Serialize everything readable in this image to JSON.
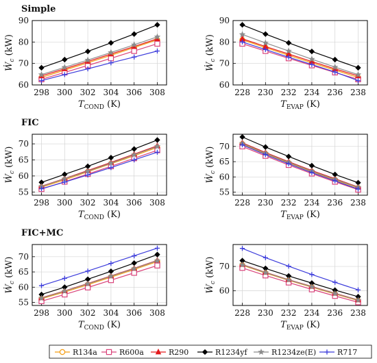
{
  "figure": {
    "legend": {
      "placement": "bottom",
      "entries": [
        {
          "name": "R134a",
          "color": "#f39c12",
          "marker": "circle"
        },
        {
          "name": "R600a",
          "color": "#d9437a",
          "marker": "square"
        },
        {
          "name": "R290",
          "color": "#e31a1c",
          "marker": "triangle"
        },
        {
          "name": "R1234yf",
          "color": "#000000",
          "marker": "diamond"
        },
        {
          "name": "R1234ze(E)",
          "color": "#8c8c8c",
          "marker": "star"
        },
        {
          "name": "R717",
          "color": "#3b3bdb",
          "marker": "plus"
        }
      ]
    }
  },
  "chart_data": [
    {
      "type": "line",
      "panel": "Simple",
      "title": "Simple",
      "xlabel": "T_COND (K)",
      "ylabel": "Ẇc (kW)",
      "xlim": [
        297.2,
        308.8
      ],
      "ylim": [
        60,
        90
      ],
      "xticks": [
        298,
        300,
        302,
        304,
        306,
        308
      ],
      "yticks": [
        60,
        70,
        80,
        90
      ],
      "grid": true,
      "x": [
        298,
        300,
        302,
        304,
        306,
        308
      ],
      "series": [
        {
          "name": "R134a",
          "values": [
            63.5,
            66.9,
            70.3,
            73.8,
            77.4,
            81.0
          ]
        },
        {
          "name": "R600a",
          "values": [
            62.6,
            65.8,
            69.1,
            72.4,
            75.8,
            79.2
          ]
        },
        {
          "name": "R290",
          "values": [
            64.2,
            67.5,
            70.9,
            74.4,
            77.9,
            81.5
          ]
        },
        {
          "name": "R1234yf",
          "values": [
            68.0,
            71.8,
            75.6,
            79.6,
            83.7,
            88.0
          ]
        },
        {
          "name": "R1234ze(E)",
          "values": [
            64.8,
            68.2,
            71.6,
            75.1,
            78.7,
            82.4
          ]
        },
        {
          "name": "R717",
          "values": [
            62.0,
            64.8,
            67.5,
            70.3,
            73.0,
            75.8
          ]
        }
      ]
    },
    {
      "type": "line",
      "panel": "Simple",
      "title": "",
      "xlabel": "T_EVAP (K)",
      "ylabel": "Ẇc (kW)",
      "xlim": [
        227.2,
        238.8
      ],
      "ylim": [
        60,
        90
      ],
      "xticks": [
        228,
        230,
        232,
        234,
        236,
        238
      ],
      "yticks": [
        60,
        70,
        80,
        90
      ],
      "grid": true,
      "x": [
        228,
        230,
        232,
        234,
        236,
        238
      ],
      "series": [
        {
          "name": "R134a",
          "values": [
            81.0,
            77.4,
            73.8,
            70.3,
            66.9,
            63.5
          ]
        },
        {
          "name": "R600a",
          "values": [
            79.2,
            75.8,
            72.4,
            69.1,
            65.8,
            62.6
          ]
        },
        {
          "name": "R290",
          "values": [
            81.5,
            77.9,
            74.4,
            70.9,
            67.5,
            64.2
          ]
        },
        {
          "name": "R1234yf",
          "values": [
            88.0,
            83.7,
            79.6,
            75.6,
            71.8,
            68.0
          ]
        },
        {
          "name": "R1234ze(E)",
          "values": [
            83.5,
            79.6,
            75.8,
            72.0,
            68.3,
            64.8
          ]
        },
        {
          "name": "R717",
          "values": [
            80.0,
            76.5,
            72.9,
            69.5,
            66.0,
            62.0
          ]
        }
      ]
    },
    {
      "type": "line",
      "panel": "FIC",
      "title": "FIC",
      "xlabel": "T_COND (K)",
      "ylabel": "Ẇc (kW)",
      "xlim": [
        297.2,
        308.8
      ],
      "ylim": [
        54,
        73
      ],
      "xticks": [
        298,
        300,
        302,
        304,
        306,
        308
      ],
      "yticks": [
        55,
        60,
        65,
        70
      ],
      "grid": true,
      "x": [
        298,
        300,
        302,
        304,
        306,
        308
      ],
      "series": [
        {
          "name": "R134a",
          "values": [
            56.5,
            58.8,
            61.3,
            63.8,
            66.3,
            68.9
          ]
        },
        {
          "name": "R600a",
          "values": [
            55.9,
            58.2,
            60.6,
            63.0,
            65.5,
            68.0
          ]
        },
        {
          "name": "R290",
          "values": [
            56.8,
            59.2,
            61.7,
            64.2,
            66.8,
            69.4
          ]
        },
        {
          "name": "R1234yf",
          "values": [
            58.0,
            60.5,
            63.0,
            65.7,
            68.4,
            71.2
          ]
        },
        {
          "name": "R1234ze(E)",
          "values": [
            56.7,
            59.1,
            61.5,
            64.0,
            66.6,
            69.2
          ]
        },
        {
          "name": "R717",
          "values": [
            56.0,
            58.1,
            60.3,
            62.6,
            65.0,
            67.4
          ]
        }
      ]
    },
    {
      "type": "line",
      "panel": "FIC",
      "title": "",
      "xlabel": "T_EVAP (K)",
      "ylabel": "Ẇc (kW)",
      "xlim": [
        227.2,
        238.8
      ],
      "ylim": [
        54,
        74
      ],
      "xticks": [
        228,
        230,
        232,
        234,
        236,
        238
      ],
      "yticks": [
        55,
        60,
        65,
        70
      ],
      "grid": true,
      "x": [
        228,
        230,
        232,
        234,
        236,
        238
      ],
      "series": [
        {
          "name": "R134a",
          "values": [
            70.8,
            67.6,
            64.6,
            61.7,
            59.0,
            56.4
          ]
        },
        {
          "name": "R600a",
          "values": [
            70.0,
            66.9,
            63.9,
            61.1,
            58.4,
            55.8
          ]
        },
        {
          "name": "R290",
          "values": [
            71.2,
            68.0,
            65.0,
            62.1,
            59.4,
            56.7
          ]
        },
        {
          "name": "R1234yf",
          "values": [
            73.1,
            69.8,
            66.7,
            63.7,
            60.8,
            58.1
          ]
        },
        {
          "name": "R1234ze(E)",
          "values": [
            71.0,
            67.8,
            64.8,
            61.9,
            59.2,
            56.6
          ]
        },
        {
          "name": "R717",
          "values": [
            70.5,
            67.3,
            64.3,
            61.4,
            58.7,
            56.0
          ]
        }
      ]
    },
    {
      "type": "line",
      "panel": "FIC+MC",
      "title": "FIC+MC",
      "xlabel": "T_COND (K)",
      "ylabel": "Ẇc (kW)",
      "xlim": [
        297.2,
        308.8
      ],
      "ylim": [
        54,
        74
      ],
      "xticks": [
        298,
        300,
        302,
        304,
        306,
        308
      ],
      "yticks": [
        55,
        60,
        65,
        70
      ],
      "grid": true,
      "x": [
        298,
        300,
        302,
        304,
        306,
        308
      ],
      "series": [
        {
          "name": "R134a",
          "values": [
            56.2,
            58.4,
            60.8,
            63.3,
            65.8,
            68.4
          ]
        },
        {
          "name": "R600a",
          "values": [
            55.4,
            57.6,
            59.9,
            62.3,
            64.7,
            67.1
          ]
        },
        {
          "name": "R290",
          "values": [
            56.5,
            58.8,
            61.2,
            63.7,
            66.2,
            68.8
          ]
        },
        {
          "name": "R1234yf",
          "values": [
            57.6,
            60.0,
            62.6,
            65.2,
            67.9,
            70.7
          ]
        },
        {
          "name": "R1234ze(E)",
          "values": [
            56.4,
            58.7,
            61.1,
            63.6,
            66.1,
            68.7
          ]
        },
        {
          "name": "R717",
          "values": [
            60.5,
            62.9,
            65.3,
            67.8,
            70.3,
            72.8
          ]
        }
      ]
    },
    {
      "type": "line",
      "panel": "FIC+MC",
      "title": "",
      "xlabel": "T_EVAP (K)",
      "ylabel": "Ẇc (kW)",
      "xlim": [
        227.2,
        238.8
      ],
      "ylim": [
        54,
        79
      ],
      "xticks": [
        228,
        230,
        232,
        234,
        236,
        238
      ],
      "yticks": [
        60,
        70
      ],
      "grid": true,
      "x": [
        228,
        230,
        232,
        234,
        236,
        238
      ],
      "series": [
        {
          "name": "R134a",
          "values": [
            70.5,
            67.3,
            64.3,
            61.5,
            58.7,
            56.0
          ]
        },
        {
          "name": "R600a",
          "values": [
            69.4,
            66.3,
            63.4,
            60.6,
            57.9,
            55.3
          ]
        },
        {
          "name": "R290",
          "values": [
            70.8,
            67.6,
            64.6,
            61.8,
            59.0,
            56.3
          ]
        },
        {
          "name": "R1234yf",
          "values": [
            72.4,
            69.2,
            66.1,
            63.2,
            60.3,
            57.6
          ]
        },
        {
          "name": "R1234ze(E)",
          "values": [
            70.7,
            67.5,
            64.5,
            61.7,
            58.9,
            56.2
          ]
        },
        {
          "name": "R717",
          "values": [
            77.4,
            73.6,
            70.1,
            66.7,
            63.5,
            60.4
          ]
        }
      ]
    }
  ]
}
